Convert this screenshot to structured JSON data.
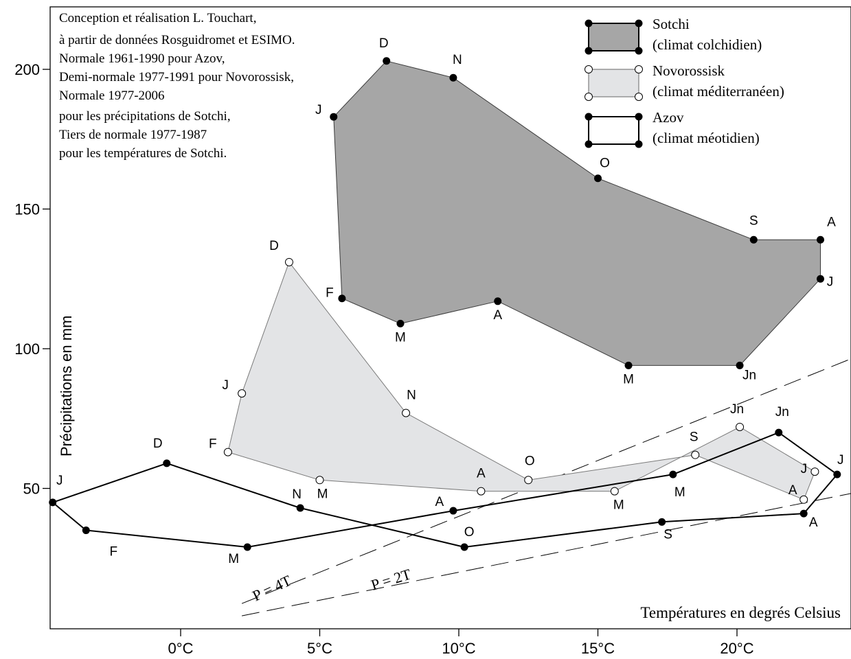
{
  "chart_data": {
    "type": "climograph",
    "xlabel": "Températures en degrés Celsius",
    "ylabel": "Précipitations en mm",
    "xlim": [
      -4.6,
      24.6
    ],
    "ylim": [
      0,
      220
    ],
    "x_ticks": [
      0,
      5,
      10,
      15,
      20
    ],
    "x_tick_labels": [
      "0°C",
      "5°C",
      "10°C",
      "15°C",
      "20°C"
    ],
    "y_ticks": [
      50,
      100,
      150,
      200
    ],
    "y_tick_labels": [
      "50",
      "100",
      "150",
      "200"
    ],
    "credits": [
      "Conception et réalisation L. Touchart,",
      "à partir de données Rosguidromet et ESIMO.",
      "Normale 1961-1990 pour Azov,",
      "Demi-normale 1977-1991 pour Novorossisk,",
      "Normale 1977-2006",
      "pour les précipitations de Sotchi,",
      "Tiers de normale 1977-1987",
      "pour les températures de Sotchi."
    ],
    "legend": [
      {
        "name": "Sotchi",
        "subtitle": "(climat colchidien)",
        "fill": "#a6a6a6",
        "marker": "filled"
      },
      {
        "name": "Novorossisk",
        "subtitle": "(climat méditerranéen)",
        "fill": "#e3e4e6",
        "marker": "open"
      },
      {
        "name": "Azov",
        "subtitle": "(climat méotidien)",
        "fill": "none",
        "marker": "filled"
      }
    ],
    "reference_lines": [
      {
        "label": "P = 4T",
        "slope": 4
      },
      {
        "label": "P = 2T",
        "slope": 2
      }
    ],
    "series": [
      {
        "name": "Sotchi",
        "points": [
          {
            "m": "J",
            "x": 5.5,
            "y": 183
          },
          {
            "m": "F",
            "x": 5.8,
            "y": 118
          },
          {
            "m": "M",
            "x": 7.9,
            "y": 109
          },
          {
            "m": "A",
            "x": 11.4,
            "y": 117
          },
          {
            "m": "M",
            "x": 16.1,
            "y": 94
          },
          {
            "m": "Jn",
            "x": 20.1,
            "y": 94
          },
          {
            "m": "J",
            "x": 23.0,
            "y": 125
          },
          {
            "m": "A",
            "x": 23.0,
            "y": 139
          },
          {
            "m": "S",
            "x": 20.6,
            "y": 139
          },
          {
            "m": "O",
            "x": 15.0,
            "y": 161
          },
          {
            "m": "N",
            "x": 9.8,
            "y": 197
          },
          {
            "m": "D",
            "x": 7.4,
            "y": 203
          }
        ]
      },
      {
        "name": "Novorossisk",
        "points": [
          {
            "m": "J",
            "x": 2.2,
            "y": 84
          },
          {
            "m": "F",
            "x": 1.7,
            "y": 63
          },
          {
            "m": "M",
            "x": 5.0,
            "y": 53
          },
          {
            "m": "A",
            "x": 10.8,
            "y": 49
          },
          {
            "m": "M",
            "x": 15.6,
            "y": 49
          },
          {
            "m": "Jn",
            "x": 20.1,
            "y": 72
          },
          {
            "m": "J",
            "x": 22.8,
            "y": 56
          },
          {
            "m": "A",
            "x": 22.4,
            "y": 46
          },
          {
            "m": "S",
            "x": 18.5,
            "y": 62
          },
          {
            "m": "O",
            "x": 12.5,
            "y": 53
          },
          {
            "m": "N",
            "x": 8.1,
            "y": 77
          },
          {
            "m": "D",
            "x": 3.9,
            "y": 131
          }
        ]
      },
      {
        "name": "Azov",
        "points": [
          {
            "m": "J",
            "x": -4.6,
            "y": 45
          },
          {
            "m": "F",
            "x": -3.4,
            "y": 35
          },
          {
            "m": "M",
            "x": 2.4,
            "y": 29
          },
          {
            "m": "A",
            "x": 9.8,
            "y": 42
          },
          {
            "m": "M",
            "x": 17.7,
            "y": 55
          },
          {
            "m": "Jn",
            "x": 21.5,
            "y": 70
          },
          {
            "m": "J",
            "x": 23.6,
            "y": 55
          },
          {
            "m": "A",
            "x": 22.4,
            "y": 41
          },
          {
            "m": "S",
            "x": 17.3,
            "y": 38
          },
          {
            "m": "O",
            "x": 10.2,
            "y": 29
          },
          {
            "m": "N",
            "x": 4.3,
            "y": 43
          },
          {
            "m": "D",
            "x": -0.5,
            "y": 59
          }
        ]
      }
    ]
  }
}
